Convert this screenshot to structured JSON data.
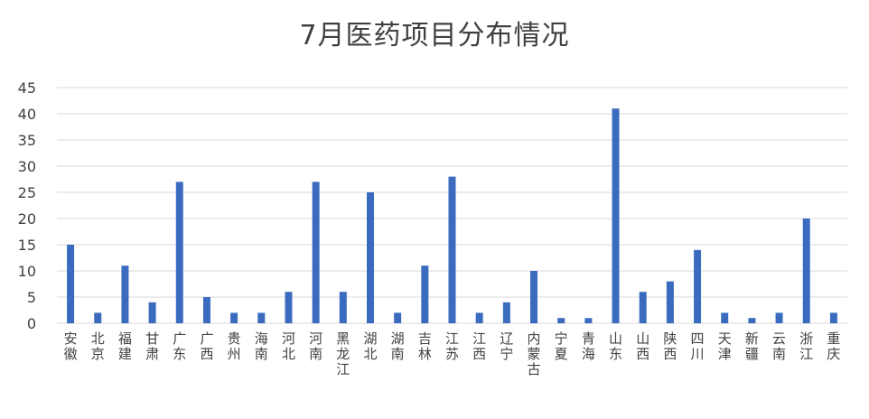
{
  "chart_data": {
    "type": "bar",
    "title": "7月医药项目分布情况",
    "xlabel": "",
    "ylabel": "",
    "ylim": [
      0,
      45
    ],
    "yticks": [
      0,
      5,
      10,
      15,
      20,
      25,
      30,
      35,
      40,
      45
    ],
    "grid": true,
    "legend": "none",
    "bar_color": "#3a6bbf",
    "grid_color": "#d9d9d9",
    "categories": [
      "安徽",
      "北京",
      "福建",
      "甘肃",
      "广东",
      "广西",
      "贵州",
      "海南",
      "河北",
      "河南",
      "黑龙江",
      "湖北",
      "湖南",
      "吉林",
      "江苏",
      "江西",
      "辽宁",
      "内蒙古",
      "宁夏",
      "青海",
      "山东",
      "山西",
      "陕西",
      "四川",
      "天津",
      "新疆",
      "云南",
      "浙江",
      "重庆"
    ],
    "values": [
      15,
      2,
      11,
      4,
      27,
      5,
      2,
      2,
      6,
      27,
      6,
      25,
      2,
      11,
      28,
      2,
      4,
      10,
      1,
      1,
      41,
      6,
      8,
      14,
      2,
      1,
      2,
      20,
      2
    ]
  }
}
